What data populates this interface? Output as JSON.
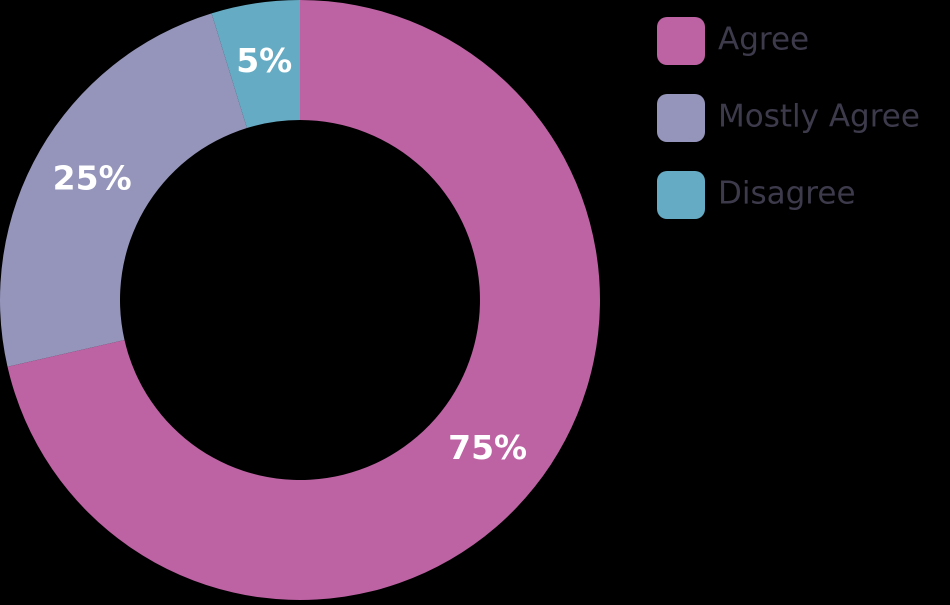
{
  "chart_data": {
    "type": "pie",
    "categories": [
      "Agree",
      "Mostly Agree",
      "Disagree"
    ],
    "values": [
      75,
      25,
      5
    ],
    "value_labels": [
      "75%",
      "25%",
      "5%"
    ],
    "colors": [
      "#bd62a3",
      "#9595bb",
      "#65abc4"
    ],
    "legend": "top-right"
  }
}
